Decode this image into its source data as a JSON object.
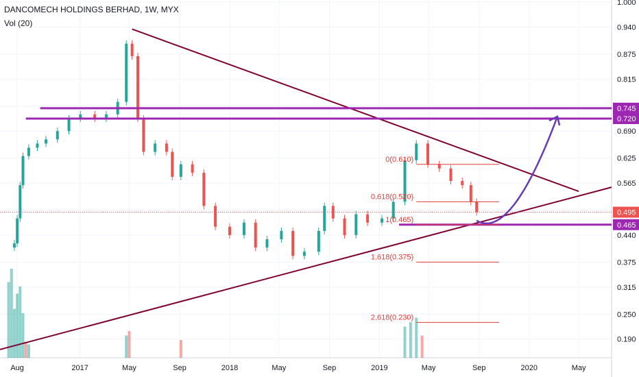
{
  "chart_data": {
    "type": "candlestick",
    "title": "DANCOMECH HOLDINGS BERHAD, 1W, MYX",
    "volume_label": "Vol (20)",
    "y_ticks": [
      1.0,
      0.94,
      0.875,
      0.815,
      0.75,
      0.69,
      0.625,
      0.565,
      0.5,
      0.44,
      0.375,
      0.315,
      0.25,
      0.19
    ],
    "y_range": [
      0.145,
      1.005
    ],
    "x_range": [
      "2016-06-20",
      "2020-07-20"
    ],
    "x_ticks": [
      {
        "label": "Aug",
        "date": "2016-08-01"
      },
      {
        "label": "2017",
        "date": "2017-01-01"
      },
      {
        "label": "May",
        "date": "2017-05-01"
      },
      {
        "label": "Sep",
        "date": "2017-09-01"
      },
      {
        "label": "2018",
        "date": "2018-01-01"
      },
      {
        "label": "May",
        "date": "2018-05-01"
      },
      {
        "label": "Sep",
        "date": "2018-09-01"
      },
      {
        "label": "2019",
        "date": "2019-01-01"
      },
      {
        "label": "May",
        "date": "2019-05-01"
      },
      {
        "label": "Sep",
        "date": "2019-09-01"
      },
      {
        "label": "2020",
        "date": "2020-01-01"
      },
      {
        "label": "May",
        "date": "2020-05-01"
      }
    ],
    "price_path": [
      [
        "2016-07-18",
        0.41
      ],
      [
        "2016-07-25",
        0.42
      ],
      [
        "2016-08-01",
        0.48
      ],
      [
        "2016-08-08",
        0.56
      ],
      [
        "2016-08-15",
        0.63
      ],
      [
        "2016-08-29",
        0.65
      ],
      [
        "2016-09-19",
        0.66
      ],
      [
        "2016-10-10",
        0.67
      ],
      [
        "2016-11-07",
        0.69
      ],
      [
        "2016-12-05",
        0.72
      ],
      [
        "2017-01-02",
        0.73
      ],
      [
        "2017-02-06",
        0.72
      ],
      [
        "2017-03-06",
        0.73
      ],
      [
        "2017-04-03",
        0.76
      ],
      [
        "2017-04-24",
        0.9
      ],
      [
        "2017-05-08",
        0.87
      ],
      [
        "2017-05-22",
        0.72
      ],
      [
        "2017-06-05",
        0.64
      ],
      [
        "2017-07-03",
        0.66
      ],
      [
        "2017-07-31",
        0.64
      ],
      [
        "2017-08-14",
        0.58
      ],
      [
        "2017-09-04",
        0.61
      ],
      [
        "2017-10-02",
        0.59
      ],
      [
        "2017-10-30",
        0.51
      ],
      [
        "2017-11-27",
        0.46
      ],
      [
        "2018-01-01",
        0.44
      ],
      [
        "2018-02-05",
        0.47
      ],
      [
        "2018-03-05",
        0.41
      ],
      [
        "2018-04-02",
        0.43
      ],
      [
        "2018-05-07",
        0.45
      ],
      [
        "2018-06-04",
        0.39
      ],
      [
        "2018-07-02",
        0.4
      ],
      [
        "2018-08-06",
        0.45
      ],
      [
        "2018-08-20",
        0.51
      ],
      [
        "2018-09-10",
        0.48
      ],
      [
        "2018-10-08",
        0.44
      ],
      [
        "2018-11-05",
        0.49
      ],
      [
        "2018-12-03",
        0.47
      ],
      [
        "2019-01-07",
        0.48
      ],
      [
        "2019-02-04",
        0.52
      ],
      [
        "2019-03-04",
        0.62
      ],
      [
        "2019-04-01",
        0.66
      ],
      [
        "2019-04-29",
        0.61
      ],
      [
        "2019-05-27",
        0.6
      ],
      [
        "2019-06-24",
        0.57
      ],
      [
        "2019-07-22",
        0.56
      ],
      [
        "2019-08-12",
        0.52
      ],
      [
        "2019-08-26",
        0.495
      ]
    ],
    "volume_bars": [
      [
        "2016-07-11",
        0.85,
        "up"
      ],
      [
        "2016-07-18",
        1.0,
        "up"
      ],
      [
        "2016-07-25",
        0.55,
        "up"
      ],
      [
        "2016-08-01",
        0.72,
        "up"
      ],
      [
        "2016-08-08",
        0.8,
        "up"
      ],
      [
        "2016-08-15",
        0.5,
        "up"
      ],
      [
        "2016-08-22",
        0.18,
        "down"
      ],
      [
        "2016-08-29",
        0.15,
        "up"
      ],
      [
        "2017-04-24",
        0.25,
        "up"
      ],
      [
        "2017-05-01",
        0.3,
        "down"
      ],
      [
        "2017-09-04",
        0.2,
        "down"
      ],
      [
        "2019-03-04",
        0.35,
        "up"
      ],
      [
        "2019-03-18",
        0.4,
        "up"
      ],
      [
        "2019-04-01",
        0.45,
        "up"
      ],
      [
        "2019-04-15",
        0.25,
        "down"
      ]
    ],
    "last_price": 0.495,
    "horizontal_levels": [
      {
        "value": 0.745,
        "label": "0.745",
        "color": "#9c27b0"
      },
      {
        "value": 0.72,
        "label": "0.720",
        "color": "#9c27b0"
      },
      {
        "value": 0.465,
        "label": "0.465",
        "color": "#9c27b0"
      }
    ],
    "trendlines": [
      {
        "from": [
          "2017-05-08",
          0.935
        ],
        "to": [
          "2020-05-01",
          0.545
        ],
        "color": "#800031"
      },
      {
        "from": [
          "2016-06-20",
          0.165
        ],
        "to": [
          "2020-07-20",
          0.555
        ],
        "color": "#800031"
      }
    ],
    "fib_levels": [
      {
        "label": "0(0.610)",
        "value": 0.61
      },
      {
        "label": "0.618(0.520)",
        "value": 0.52
      },
      {
        "label": "1(0.465)",
        "value": 0.465
      },
      {
        "label": "1.618(0.375)",
        "value": 0.375
      },
      {
        "label": "2.618(0.230)",
        "value": 0.23
      }
    ],
    "projection_arrow": {
      "from": [
        "2019-08-26",
        0.475
      ],
      "to": [
        "2020-03-10",
        0.725
      ],
      "color": "#673ab7"
    },
    "colors": {
      "up": "#26a69a",
      "down": "#ef5350",
      "fib": "#e53935",
      "accent": "#9c27b0",
      "trend": "#800031"
    },
    "grid": true
  }
}
